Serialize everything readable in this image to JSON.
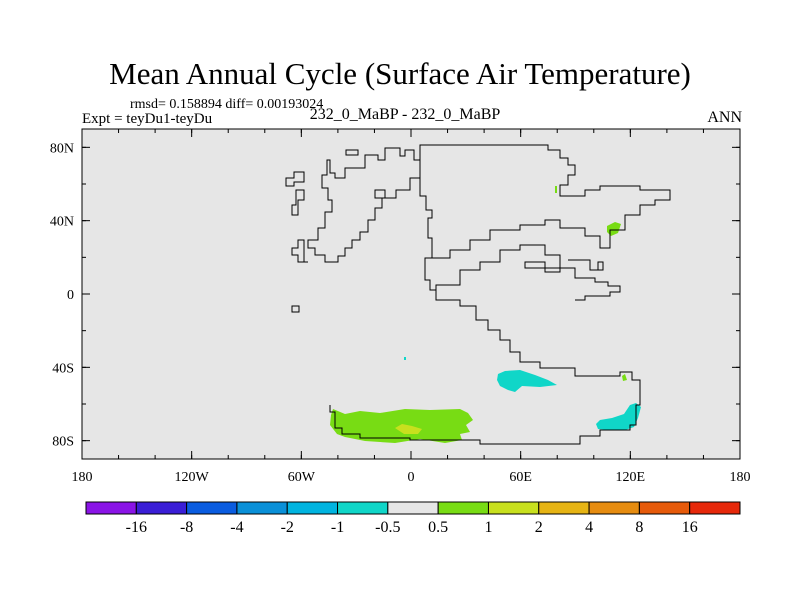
{
  "chart_data": {
    "type": "heatmap",
    "title": "Mean Annual Cycle (Surface Air Temperature)",
    "stats_text": "rmsd= 0.158894 diff= 0.00193024",
    "experiment_label": "Expt = teyDu1-teyDu",
    "experiment_names": "232_0_MaBP - 232_0_MaBP",
    "season": "ANN",
    "x_range": [
      -180,
      180
    ],
    "y_range": [
      -90,
      90
    ],
    "x_ticks": [
      {
        "value": -180,
        "label": "180"
      },
      {
        "value": -120,
        "label": "120W"
      },
      {
        "value": -60,
        "label": "60W"
      },
      {
        "value": 0,
        "label": "0"
      },
      {
        "value": 60,
        "label": "60E"
      },
      {
        "value": 120,
        "label": "120E"
      },
      {
        "value": 180,
        "label": "180"
      }
    ],
    "y_ticks": [
      {
        "value": 80,
        "label": "80N"
      },
      {
        "value": 40,
        "label": "40N"
      },
      {
        "value": 0,
        "label": "0"
      },
      {
        "value": -40,
        "label": "40S"
      },
      {
        "value": -80,
        "label": "80S"
      }
    ],
    "background_value_range": [
      -0.5,
      0.5
    ],
    "colorbar": {
      "colors": [
        "#8a14e6",
        "#3a1ed6",
        "#0a5ce0",
        "#0a90d8",
        "#00b4e0",
        "#10d6c8",
        "#e6e6e6",
        "#78dc14",
        "#c8e01e",
        "#e6b414",
        "#e68c10",
        "#e65a0a",
        "#e6280a"
      ],
      "labels": [
        "-16",
        "-8",
        "-4",
        "-2",
        "-1",
        "-0.5",
        "0.5",
        "1",
        "2",
        "4",
        "8",
        "16"
      ]
    },
    "anomaly_regions": [
      {
        "level": "0.5 to 1",
        "color": "#78dc14",
        "region": "Antarctic coast south of Atlantic",
        "lon_range": [
          -45,
          35
        ],
        "lat_range": [
          -82,
          -65
        ]
      },
      {
        "level": "1 to 2",
        "color": "#c8e01e",
        "region": "Antarctic coast south of Atlantic",
        "lon_range": [
          -10,
          5
        ],
        "lat_range": [
          -77,
          -72
        ]
      },
      {
        "level": "-1 to -0.5",
        "color": "#10d6c8",
        "region": "Southern Indian Ocean",
        "lon_range": [
          47,
          80
        ],
        "lat_range": [
          -53,
          -42
        ]
      },
      {
        "level": "-1 to -0.5",
        "color": "#10d6c8",
        "region": "Antarctic coast south of Australia",
        "lon_range": [
          103,
          125
        ],
        "lat_range": [
          -75,
          -60
        ]
      },
      {
        "level": "0.5 to 1",
        "color": "#78dc14",
        "region": "East Asia",
        "lon_range": [
          107,
          115
        ],
        "lat_range": [
          36,
          40
        ]
      },
      {
        "level": "0.5 to 1",
        "color": "#78dc14",
        "region": "Arctic Asia",
        "lon_range": [
          78,
          79
        ],
        "lat_range": [
          55,
          63
        ]
      }
    ]
  }
}
